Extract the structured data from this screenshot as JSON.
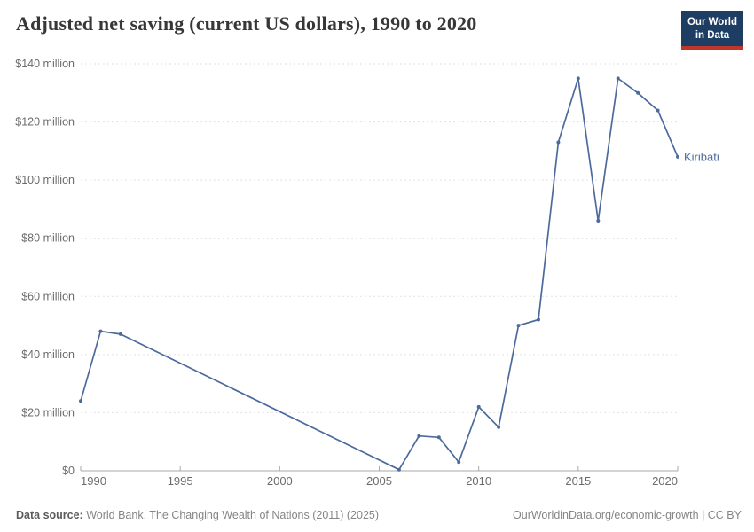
{
  "header": {
    "title": "Adjusted net saving (current US dollars), 1990 to 2020",
    "logo": {
      "line1": "Our World",
      "line2": "in Data"
    }
  },
  "footer": {
    "source_label": "Data source:",
    "source_text": " World Bank, The Changing Wealth of Nations (2011) (2025)",
    "credit": "OurWorldinData.org/economic-growth | CC BY"
  },
  "colors": {
    "line": "#4c6a9c",
    "end_label": "#4c6a9c",
    "grid": "#e2e2e2",
    "axis": "#a9a9a9",
    "tick_text": "#6b6b6b",
    "logo_navy": "#1d3d63",
    "logo_red": "#c0362c"
  },
  "chart_data": {
    "type": "line",
    "title": "Adjusted net saving (current US dollars), 1990 to 2020",
    "xlabel": "",
    "ylabel": "",
    "y_unit": "US$ millions",
    "xlim": [
      1990,
      2020
    ],
    "ylim": [
      0,
      140
    ],
    "grid": "horizontal-dashed",
    "legend_position": "end-of-line-label",
    "xticks": [
      1990,
      1995,
      2000,
      2005,
      2010,
      2015,
      2020
    ],
    "yticks": [
      {
        "value": 0,
        "label": "$0"
      },
      {
        "value": 20,
        "label": "$20 million"
      },
      {
        "value": 40,
        "label": "$40 million"
      },
      {
        "value": 60,
        "label": "$60 million"
      },
      {
        "value": 80,
        "label": "$80 million"
      },
      {
        "value": 100,
        "label": "$100 million"
      },
      {
        "value": 120,
        "label": "$120 million"
      },
      {
        "value": 140,
        "label": "$140 million"
      }
    ],
    "series": [
      {
        "name": "Kiribati",
        "note": "no data 1993-2005; line interpolated straight across the gap",
        "x": [
          1990,
          1991,
          1992,
          2006,
          2007,
          2008,
          2009,
          2010,
          2011,
          2012,
          2013,
          2014,
          2015,
          2016,
          2017,
          2018,
          2019,
          2020
        ],
        "y": [
          24,
          48,
          47,
          0.4,
          12,
          11.5,
          3,
          22,
          15,
          50,
          52,
          113,
          135,
          86,
          135,
          130,
          124,
          108
        ]
      }
    ]
  }
}
